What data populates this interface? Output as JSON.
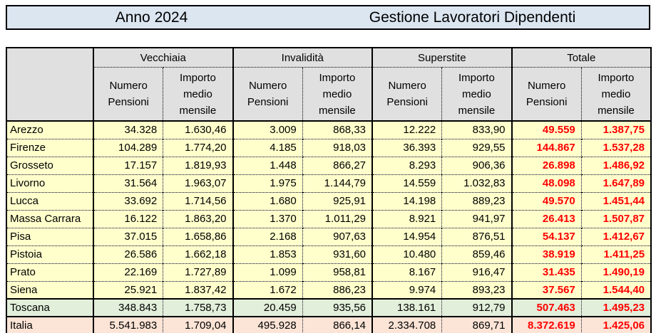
{
  "title_bar": {
    "year_label": "Anno 2024",
    "caption": "Gestione Lavoratori Dipendenti"
  },
  "table": {
    "corner_label": "",
    "groups": [
      "Vecchiaia",
      "Invalidità",
      "Superstite",
      "Totale"
    ],
    "sub_headers": {
      "numero": "Numero Pensioni",
      "importo": "Importo medio mensile"
    },
    "rows": [
      {
        "label": "Arezzo",
        "type": "data",
        "values": [
          "34.328",
          "1.630,46",
          "3.009",
          "868,33",
          "12.222",
          "833,90",
          "49.559",
          "1.387,75"
        ]
      },
      {
        "label": "Firenze",
        "type": "data",
        "values": [
          "104.289",
          "1.774,20",
          "4.185",
          "918,03",
          "36.393",
          "929,55",
          "144.867",
          "1.537,28"
        ]
      },
      {
        "label": "Grosseto",
        "type": "data",
        "values": [
          "17.157",
          "1.819,93",
          "1.448",
          "866,27",
          "8.293",
          "906,36",
          "26.898",
          "1.486,92"
        ]
      },
      {
        "label": "Livorno",
        "type": "data",
        "values": [
          "31.564",
          "1.963,07",
          "1.975",
          "1.144,79",
          "14.559",
          "1.032,83",
          "48.098",
          "1.647,89"
        ]
      },
      {
        "label": "Lucca",
        "type": "data",
        "values": [
          "33.692",
          "1.714,56",
          "1.680",
          "925,91",
          "14.198",
          "889,23",
          "49.570",
          "1.451,44"
        ]
      },
      {
        "label": "Massa Carrara",
        "type": "data",
        "values": [
          "16.122",
          "1.863,20",
          "1.370",
          "1.011,29",
          "8.921",
          "941,97",
          "26.413",
          "1.507,87"
        ]
      },
      {
        "label": "Pisa",
        "type": "data",
        "values": [
          "37.015",
          "1.658,86",
          "2.168",
          "907,63",
          "14.954",
          "876,51",
          "54.137",
          "1.412,67"
        ]
      },
      {
        "label": "Pistoia",
        "type": "data",
        "values": [
          "26.586",
          "1.662,18",
          "1.853",
          "931,60",
          "10.480",
          "859,46",
          "38.919",
          "1.411,25"
        ]
      },
      {
        "label": "Prato",
        "type": "data",
        "values": [
          "22.169",
          "1.727,89",
          "1.099",
          "958,81",
          "8.167",
          "916,47",
          "31.435",
          "1.490,19"
        ]
      },
      {
        "label": "Siena",
        "type": "data",
        "values": [
          "25.921",
          "1.837,42",
          "1.672",
          "886,23",
          "9.974",
          "893,23",
          "37.567",
          "1.544,40"
        ]
      },
      {
        "label": "Toscana",
        "type": "region_total",
        "values": [
          "348.843",
          "1.758,73",
          "20.459",
          "935,56",
          "138.161",
          "912,79",
          "507.463",
          "1.495,23"
        ]
      },
      {
        "label": "Italia",
        "type": "country_total",
        "values": [
          "5.541.983",
          "1.709,04",
          "495.928",
          "866,14",
          "2.334.708",
          "869,71",
          "8.372.619",
          "1.425,06"
        ]
      }
    ]
  },
  "colors": {
    "title_background": "#dce6f1",
    "header_background": "#e0e0e0",
    "data_row_background": "#ffffcc",
    "region_total_background": "#e2efda",
    "country_total_background": "#fce4d6",
    "total_text": "#ff0000",
    "border": "#000000"
  }
}
